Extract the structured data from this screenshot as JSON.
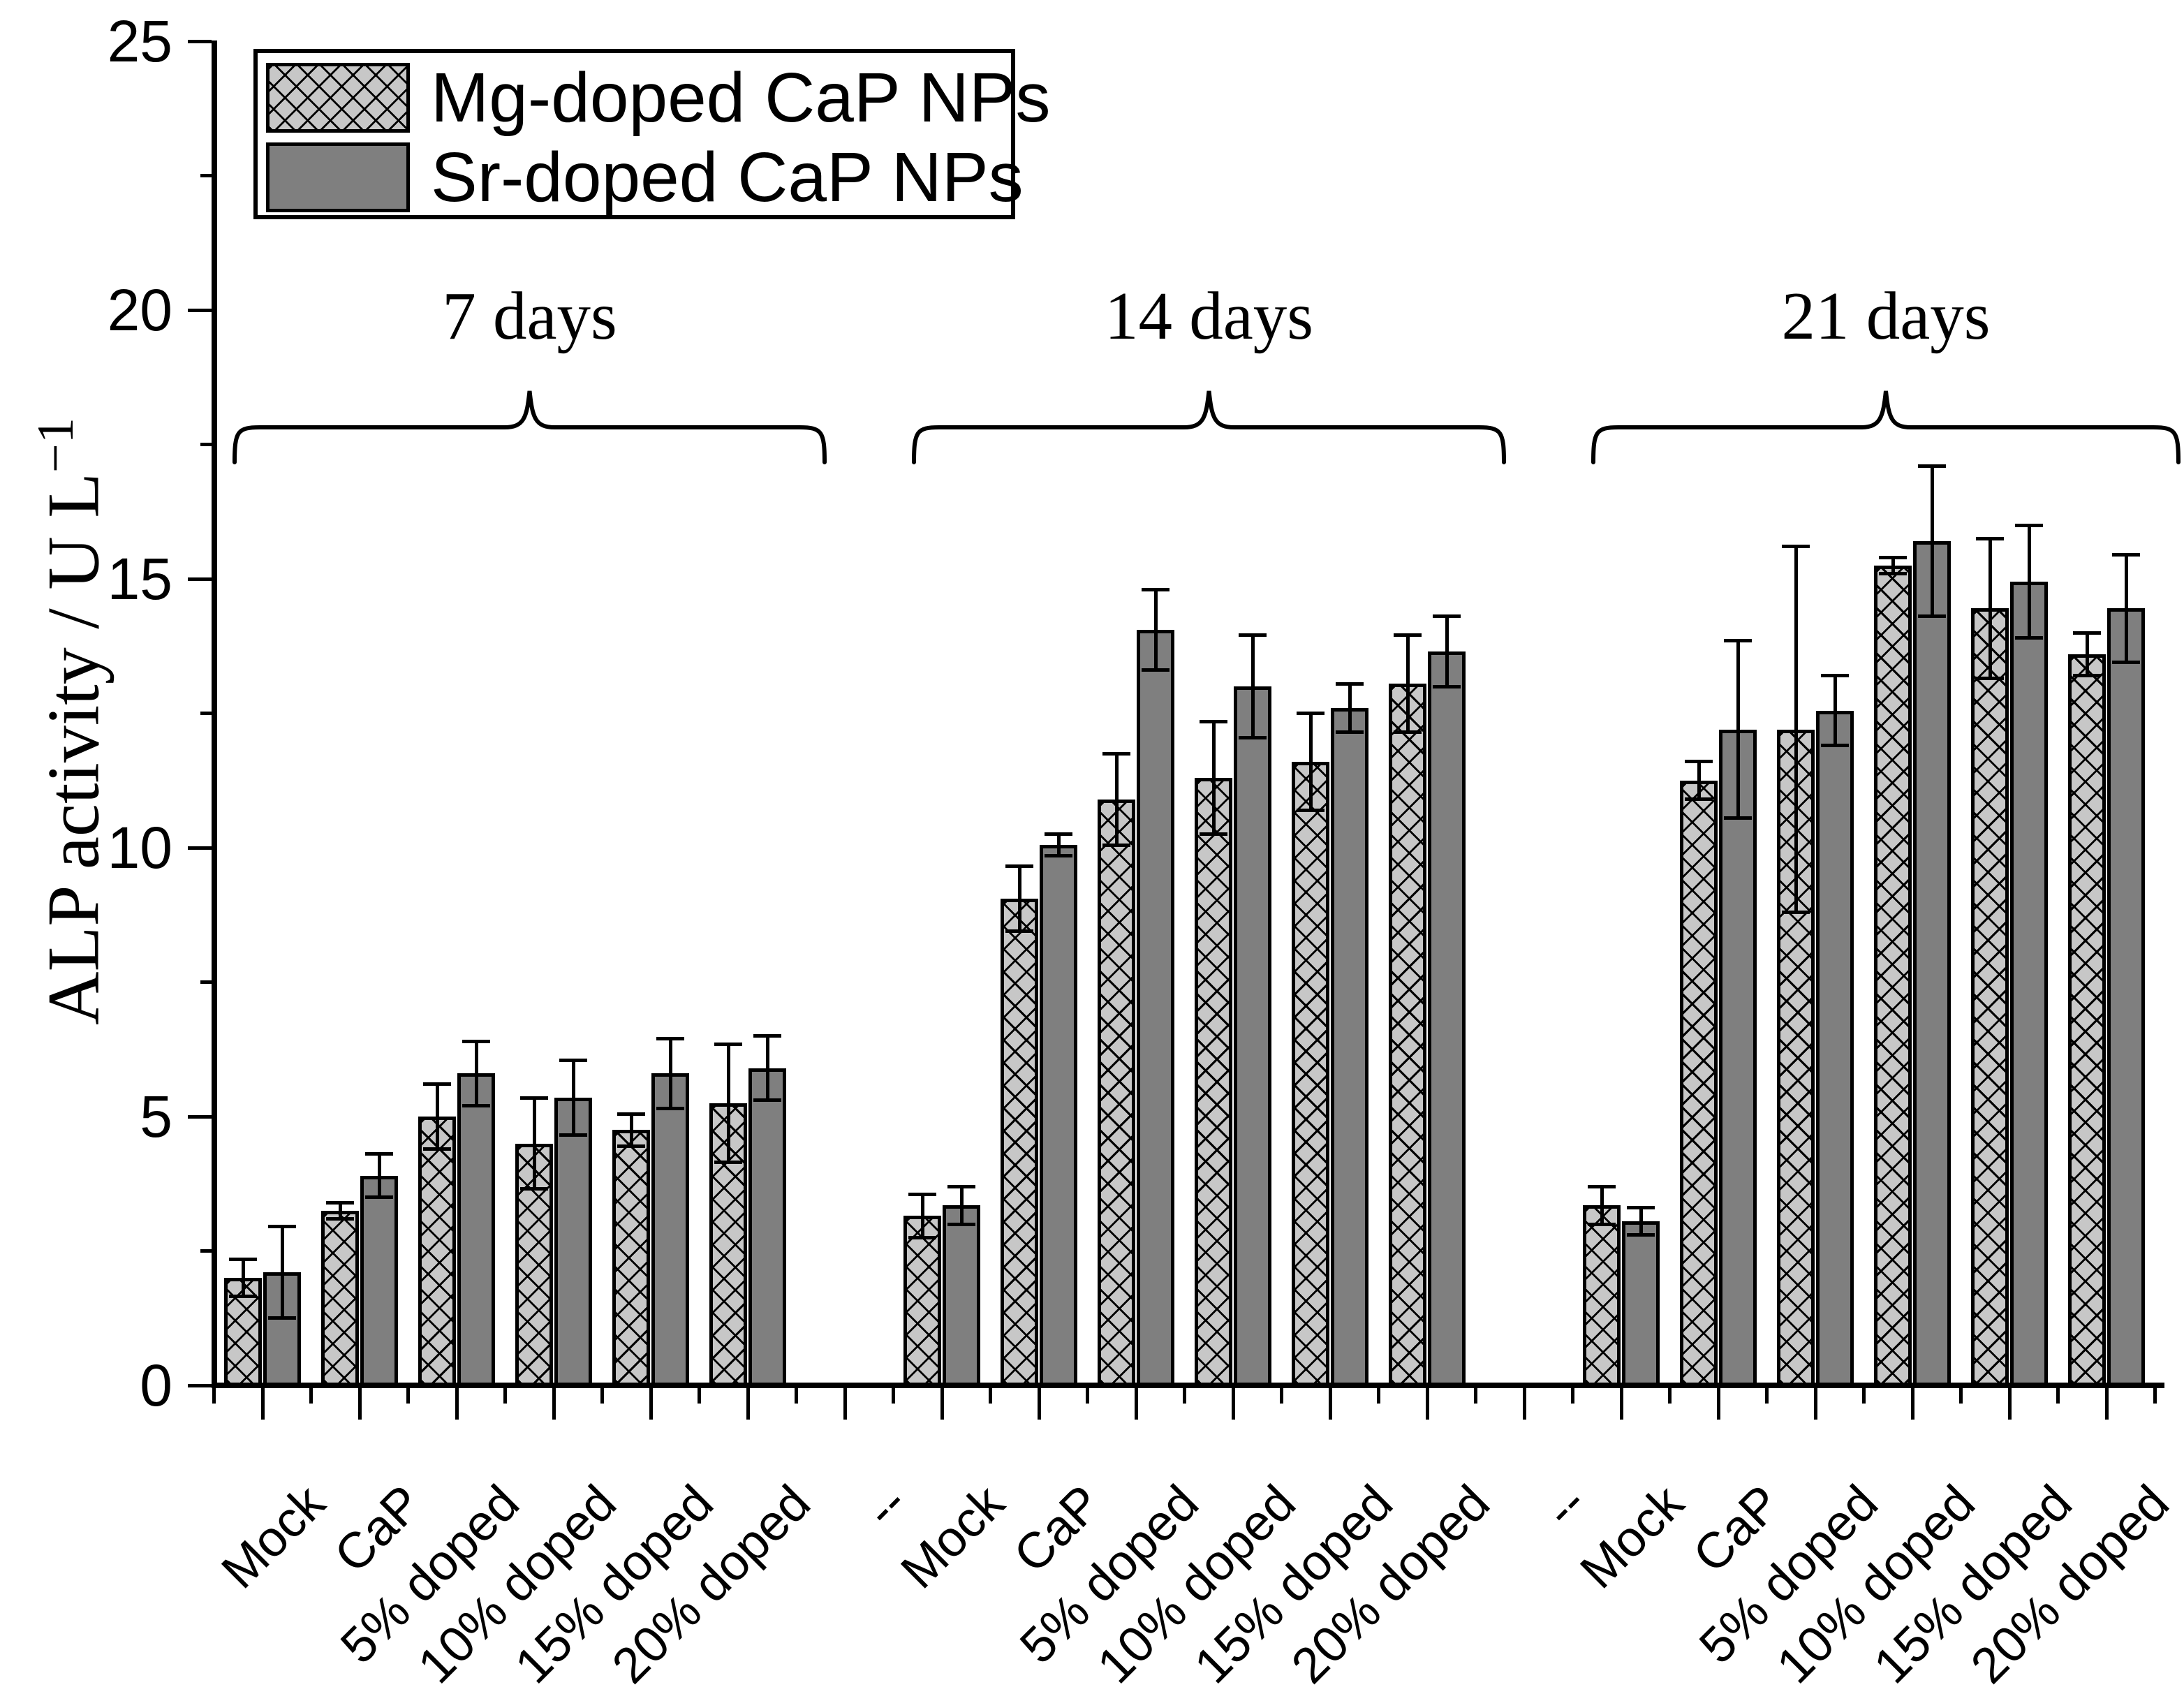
{
  "legend": {
    "items": [
      {
        "label": "Mg-doped CaP NPs",
        "swatch": "crosshatch-light-gray"
      },
      {
        "label": "Sr-doped CaP NPs",
        "swatch": "solid-dark-gray"
      }
    ]
  },
  "y_axis": {
    "label_main": "ALP activity / U L",
    "label_sup": "−1",
    "label_full": "ALP activity / U L⁻¹"
  },
  "chart_data": {
    "type": "bar",
    "title": "",
    "xlabel": "",
    "ylabel": "ALP activity / U L⁻¹",
    "ylim": [
      0,
      25
    ],
    "y_major_ticks": [
      0,
      5,
      10,
      15,
      20,
      25
    ],
    "y_minor_ticks": [
      2.5,
      7.5,
      12.5,
      17.5,
      22.5
    ],
    "grid": false,
    "legend_position": "top-left",
    "series_names": [
      "Mg-doped CaP NPs",
      "Sr-doped CaP NPs"
    ],
    "categories": [
      "Mock",
      "CaP",
      "5% doped",
      "10% doped",
      "15% doped",
      "20% doped"
    ],
    "gap_label": "--",
    "x_labels_sequence": [
      "Mock",
      "CaP",
      "5% doped",
      "10% doped",
      "15% doped",
      "20% doped",
      "--",
      "Mock",
      "CaP",
      "5% doped",
      "10% doped",
      "15% doped",
      "20% doped",
      "--",
      "Mock",
      "CaP",
      "5% doped",
      "10% doped",
      "15% doped",
      "20% doped"
    ],
    "groups": [
      {
        "label": "7 days",
        "series": [
          {
            "name": "Mg-doped CaP NPs",
            "values": [
              2.0,
              3.25,
              5.0,
              4.5,
              4.75,
              5.25
            ],
            "errors": [
              0.35,
              0.15,
              0.6,
              0.85,
              0.3,
              1.1
            ]
          },
          {
            "name": "Sr-doped CaP NPs",
            "values": [
              2.1,
              3.9,
              5.8,
              5.35,
              5.8,
              5.9
            ],
            "errors": [
              0.85,
              0.4,
              0.6,
              0.7,
              0.65,
              0.6
            ]
          }
        ]
      },
      {
        "label": "14 days",
        "series": [
          {
            "name": "Mg-doped CaP NPs",
            "values": [
              3.15,
              9.05,
              10.9,
              11.3,
              11.6,
              13.05
            ],
            "errors": [
              0.4,
              0.6,
              0.85,
              1.05,
              0.9,
              0.9
            ]
          },
          {
            "name": "Sr-doped CaP NPs",
            "values": [
              3.35,
              10.05,
              14.05,
              13.0,
              12.6,
              13.65
            ],
            "errors": [
              0.35,
              0.2,
              0.75,
              0.95,
              0.45,
              0.65
            ]
          }
        ]
      },
      {
        "label": "21 days",
        "series": [
          {
            "name": "Mg-doped CaP NPs",
            "values": [
              3.35,
              11.25,
              12.2,
              15.25,
              14.45,
              13.6
            ],
            "errors": [
              0.35,
              0.35,
              3.4,
              0.15,
              1.3,
              0.4
            ]
          },
          {
            "name": "Sr-doped CaP NPs",
            "values": [
              3.05,
              12.2,
              12.55,
              15.7,
              14.95,
              14.45
            ],
            "errors": [
              0.25,
              1.65,
              0.65,
              1.4,
              1.05,
              1.0
            ]
          }
        ]
      }
    ],
    "colors": {
      "mg_fill": "#c7c7c7",
      "sr_fill": "#7f7f7f",
      "hatch": "#000000",
      "axis": "#000000",
      "background": "#ffffff"
    }
  }
}
